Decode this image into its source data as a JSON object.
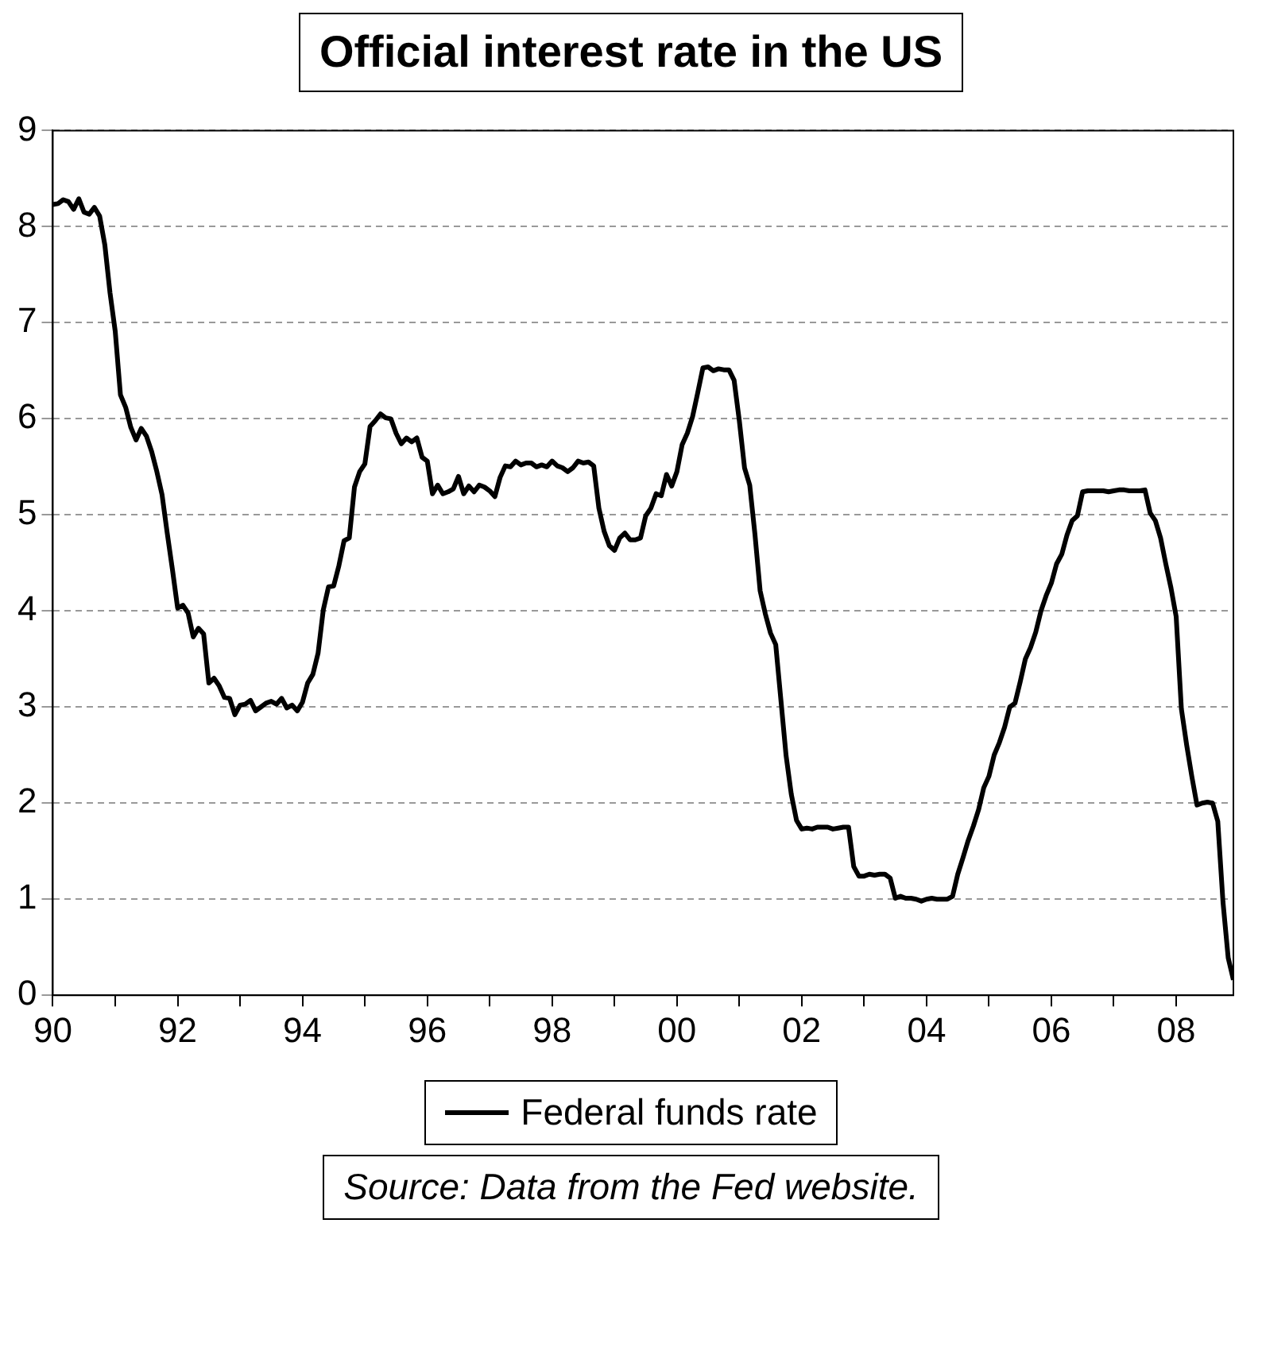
{
  "chart_data": {
    "type": "line",
    "title": "Official interest rate in the US",
    "x": [
      "1990-01",
      "1990-02",
      "1990-03",
      "1990-04",
      "1990-05",
      "1990-06",
      "1990-07",
      "1990-08",
      "1990-09",
      "1990-10",
      "1990-11",
      "1990-12",
      "1991-01",
      "1991-02",
      "1991-03",
      "1991-04",
      "1991-05",
      "1991-06",
      "1991-07",
      "1991-08",
      "1991-09",
      "1991-10",
      "1991-11",
      "1991-12",
      "1992-01",
      "1992-02",
      "1992-03",
      "1992-04",
      "1992-05",
      "1992-06",
      "1992-07",
      "1992-08",
      "1992-09",
      "1992-10",
      "1992-11",
      "1992-12",
      "1993-01",
      "1993-02",
      "1993-03",
      "1993-04",
      "1993-05",
      "1993-06",
      "1993-07",
      "1993-08",
      "1993-09",
      "1993-10",
      "1993-11",
      "1993-12",
      "1994-01",
      "1994-02",
      "1994-03",
      "1994-04",
      "1994-05",
      "1994-06",
      "1994-07",
      "1994-08",
      "1994-09",
      "1994-10",
      "1994-11",
      "1994-12",
      "1995-01",
      "1995-02",
      "1995-03",
      "1995-04",
      "1995-05",
      "1995-06",
      "1995-07",
      "1995-08",
      "1995-09",
      "1995-10",
      "1995-11",
      "1995-12",
      "1996-01",
      "1996-02",
      "1996-03",
      "1996-04",
      "1996-05",
      "1996-06",
      "1996-07",
      "1996-08",
      "1996-09",
      "1996-10",
      "1996-11",
      "1996-12",
      "1997-01",
      "1997-02",
      "1997-03",
      "1997-04",
      "1997-05",
      "1997-06",
      "1997-07",
      "1997-08",
      "1997-09",
      "1997-10",
      "1997-11",
      "1997-12",
      "1998-01",
      "1998-02",
      "1998-03",
      "1998-04",
      "1998-05",
      "1998-06",
      "1998-07",
      "1998-08",
      "1998-09",
      "1998-10",
      "1998-11",
      "1998-12",
      "1999-01",
      "1999-02",
      "1999-03",
      "1999-04",
      "1999-05",
      "1999-06",
      "1999-07",
      "1999-08",
      "1999-09",
      "1999-10",
      "1999-11",
      "1999-12",
      "2000-01",
      "2000-02",
      "2000-03",
      "2000-04",
      "2000-05",
      "2000-06",
      "2000-07",
      "2000-08",
      "2000-09",
      "2000-10",
      "2000-11",
      "2000-12",
      "2001-01",
      "2001-02",
      "2001-03",
      "2001-04",
      "2001-05",
      "2001-06",
      "2001-07",
      "2001-08",
      "2001-09",
      "2001-10",
      "2001-11",
      "2001-12",
      "2002-01",
      "2002-02",
      "2002-03",
      "2002-04",
      "2002-05",
      "2002-06",
      "2002-07",
      "2002-08",
      "2002-09",
      "2002-10",
      "2002-11",
      "2002-12",
      "2003-01",
      "2003-02",
      "2003-03",
      "2003-04",
      "2003-05",
      "2003-06",
      "2003-07",
      "2003-08",
      "2003-09",
      "2003-10",
      "2003-11",
      "2003-12",
      "2004-01",
      "2004-02",
      "2004-03",
      "2004-04",
      "2004-05",
      "2004-06",
      "2004-07",
      "2004-08",
      "2004-09",
      "2004-10",
      "2004-11",
      "2004-12",
      "2005-01",
      "2005-02",
      "2005-03",
      "2005-04",
      "2005-05",
      "2005-06",
      "2005-07",
      "2005-08",
      "2005-09",
      "2005-10",
      "2005-11",
      "2005-12",
      "2006-01",
      "2006-02",
      "2006-03",
      "2006-04",
      "2006-05",
      "2006-06",
      "2006-07",
      "2006-08",
      "2006-09",
      "2006-10",
      "2006-11",
      "2006-12",
      "2007-01",
      "2007-02",
      "2007-03",
      "2007-04",
      "2007-05",
      "2007-06",
      "2007-07",
      "2007-08",
      "2007-09",
      "2007-10",
      "2007-11",
      "2007-12",
      "2008-01",
      "2008-02",
      "2008-03",
      "2008-04",
      "2008-05",
      "2008-06",
      "2008-07",
      "2008-08",
      "2008-09",
      "2008-10",
      "2008-11",
      "2008-12"
    ],
    "series": [
      {
        "name": "Federal funds rate",
        "color": "#000000",
        "values": [
          8.23,
          8.24,
          8.28,
          8.26,
          8.18,
          8.29,
          8.15,
          8.13,
          8.2,
          8.11,
          7.81,
          7.31,
          6.91,
          6.25,
          6.12,
          5.91,
          5.78,
          5.9,
          5.82,
          5.66,
          5.45,
          5.21,
          4.81,
          4.43,
          4.03,
          4.06,
          3.98,
          3.73,
          3.82,
          3.76,
          3.25,
          3.3,
          3.22,
          3.1,
          3.09,
          2.92,
          3.02,
          3.03,
          3.07,
          2.96,
          3.0,
          3.04,
          3.06,
          3.03,
          3.09,
          2.99,
          3.02,
          2.96,
          3.05,
          3.25,
          3.34,
          3.56,
          4.01,
          4.25,
          4.26,
          4.47,
          4.73,
          4.76,
          5.29,
          5.45,
          5.53,
          5.92,
          5.98,
          6.05,
          6.01,
          6.0,
          5.85,
          5.74,
          5.8,
          5.76,
          5.8,
          5.6,
          5.56,
          5.22,
          5.31,
          5.22,
          5.24,
          5.27,
          5.4,
          5.22,
          5.3,
          5.24,
          5.31,
          5.29,
          5.25,
          5.19,
          5.39,
          5.51,
          5.5,
          5.56,
          5.52,
          5.54,
          5.54,
          5.5,
          5.52,
          5.5,
          5.56,
          5.51,
          5.49,
          5.45,
          5.49,
          5.56,
          5.54,
          5.55,
          5.51,
          5.07,
          4.83,
          4.68,
          4.63,
          4.76,
          4.81,
          4.74,
          4.74,
          4.76,
          4.99,
          5.07,
          5.22,
          5.2,
          5.42,
          5.3,
          5.45,
          5.73,
          5.85,
          6.02,
          6.27,
          6.53,
          6.54,
          6.5,
          6.52,
          6.51,
          6.51,
          6.4,
          5.98,
          5.49,
          5.31,
          4.8,
          4.21,
          3.97,
          3.77,
          3.65,
          3.07,
          2.49,
          2.09,
          1.82,
          1.73,
          1.74,
          1.73,
          1.75,
          1.75,
          1.75,
          1.73,
          1.74,
          1.75,
          1.75,
          1.34,
          1.24,
          1.24,
          1.26,
          1.25,
          1.26,
          1.26,
          1.22,
          1.01,
          1.03,
          1.01,
          1.01,
          1.0,
          0.98,
          1.0,
          1.01,
          1.0,
          1.0,
          1.0,
          1.03,
          1.26,
          1.43,
          1.61,
          1.76,
          1.93,
          2.16,
          2.28,
          2.5,
          2.63,
          2.79,
          3.0,
          3.04,
          3.26,
          3.5,
          3.62,
          3.78,
          4.0,
          4.16,
          4.29,
          4.49,
          4.59,
          4.79,
          4.94,
          4.99,
          5.24,
          5.25,
          5.25,
          5.25,
          5.25,
          5.24,
          5.25,
          5.26,
          5.26,
          5.25,
          5.25,
          5.25,
          5.26,
          5.02,
          4.94,
          4.76,
          4.49,
          4.24,
          3.94,
          2.98,
          2.61,
          2.28,
          1.98,
          2.0,
          2.01,
          2.0,
          1.81,
          0.97,
          0.39,
          0.16
        ]
      }
    ],
    "xlim": [
      "1990-01",
      "2008-12"
    ],
    "xticks": [
      {
        "value": "1990",
        "label": "90"
      },
      {
        "value": "1991",
        "label": null
      },
      {
        "value": "1992",
        "label": "92"
      },
      {
        "value": "1993",
        "label": null
      },
      {
        "value": "1994",
        "label": "94"
      },
      {
        "value": "1995",
        "label": null
      },
      {
        "value": "1996",
        "label": "96"
      },
      {
        "value": "1997",
        "label": null
      },
      {
        "value": "1998",
        "label": "98"
      },
      {
        "value": "1999",
        "label": null
      },
      {
        "value": "2000",
        "label": "00"
      },
      {
        "value": "2001",
        "label": null
      },
      {
        "value": "2002",
        "label": "02"
      },
      {
        "value": "2003",
        "label": null
      },
      {
        "value": "2004",
        "label": "04"
      },
      {
        "value": "2005",
        "label": null
      },
      {
        "value": "2006",
        "label": "06"
      },
      {
        "value": "2007",
        "label": null
      },
      {
        "value": "2008",
        "label": "08"
      }
    ],
    "ylim": [
      0,
      9
    ],
    "yticks": [
      0,
      1,
      2,
      3,
      4,
      5,
      6,
      7,
      8,
      9
    ],
    "grid": "y",
    "legend": "bottom",
    "annotations": [
      "Source: Data from the Fed website."
    ]
  }
}
